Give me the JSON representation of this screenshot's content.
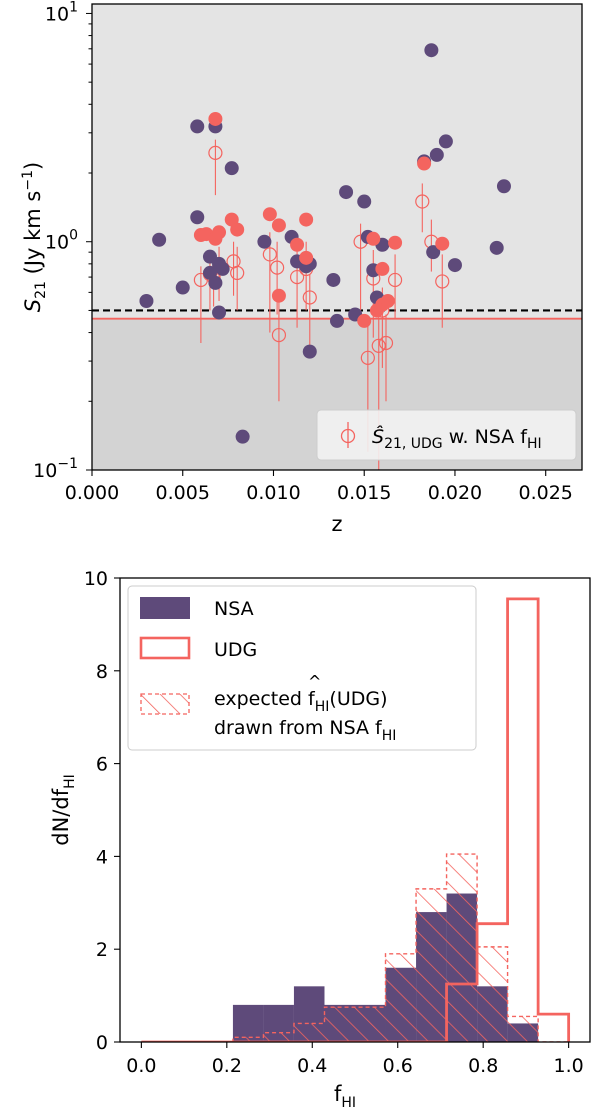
{
  "colors": {
    "nsa": "#5e4a7a",
    "udg": "#f4645f",
    "upper_shade": "#e4e4e4",
    "lower_shade": "#d3d3d3",
    "threshold_black": "#000000"
  },
  "chart_data": [
    {
      "type": "scatter",
      "xlabel": "z",
      "ylabel_main": "S",
      "ylabel_sub": "21",
      "ylabel_units": " (Jy km s",
      "ylabel_exp": "−1",
      "ylabel_close": ")",
      "xlim": [
        0.0,
        0.027
      ],
      "ylim": [
        0.1,
        11
      ],
      "yscale": "log",
      "x_ticks": [
        "0.000",
        "0.005",
        "0.010",
        "0.015",
        "0.020",
        "0.025"
      ],
      "x_tick_values": [
        0.0,
        0.005,
        0.01,
        0.015,
        0.02,
        0.025
      ],
      "y_ticks": [
        {
          "value": 10,
          "base": "10",
          "exp": "1"
        },
        {
          "value": 1,
          "base": "10",
          "exp": "0"
        },
        {
          "value": 0.1,
          "base": "10",
          "exp": "−1"
        }
      ],
      "thresholds": {
        "black_dashed": 0.5,
        "red_solid": 0.46
      },
      "legend": {
        "position": "lower-right",
        "label_hat": "Ŝ",
        "label_sub": "21, UDG",
        "label_rest": " w. NSA f",
        "label_rest_sub": "HI"
      },
      "series": [
        {
          "kind": "nsa-filled",
          "points": [
            [
              0.003,
              0.55
            ],
            [
              0.0037,
              1.02
            ],
            [
              0.005,
              0.63
            ],
            [
              0.0058,
              3.2
            ],
            [
              0.0058,
              1.28
            ],
            [
              0.0065,
              0.86
            ],
            [
              0.0065,
              0.73
            ],
            [
              0.0068,
              3.2
            ],
            [
              0.0068,
              0.66
            ],
            [
              0.007,
              0.8
            ],
            [
              0.007,
              0.49
            ],
            [
              0.0072,
              0.76
            ],
            [
              0.0077,
              2.1
            ],
            [
              0.0083,
              0.14
            ],
            [
              0.0095,
              1.0
            ],
            [
              0.011,
              1.05
            ],
            [
              0.0113,
              0.82
            ],
            [
              0.0118,
              0.78
            ],
            [
              0.012,
              0.8
            ],
            [
              0.012,
              0.33
            ],
            [
              0.0133,
              0.68
            ],
            [
              0.0135,
              0.45
            ],
            [
              0.014,
              1.65
            ],
            [
              0.0145,
              0.48
            ],
            [
              0.015,
              1.5
            ],
            [
              0.0152,
              1.05
            ],
            [
              0.0155,
              0.75
            ],
            [
              0.0157,
              0.57
            ],
            [
              0.016,
              0.97
            ],
            [
              0.0183,
              2.25
            ],
            [
              0.0187,
              6.9
            ],
            [
              0.0188,
              0.9
            ],
            [
              0.019,
              2.4
            ],
            [
              0.0195,
              2.75
            ],
            [
              0.02,
              0.79
            ],
            [
              0.0223,
              0.94
            ],
            [
              0.0227,
              1.75
            ]
          ]
        },
        {
          "kind": "udg-filled",
          "points": [
            [
              0.006,
              1.07
            ],
            [
              0.0063,
              1.08
            ],
            [
              0.0068,
              3.45
            ],
            [
              0.0068,
              1.03
            ],
            [
              0.007,
              1.1
            ],
            [
              0.0077,
              1.25
            ],
            [
              0.008,
              1.13
            ],
            [
              0.0098,
              1.32
            ],
            [
              0.0103,
              0.58
            ],
            [
              0.0103,
              1.18
            ],
            [
              0.0113,
              0.97
            ],
            [
              0.0118,
              1.25
            ],
            [
              0.0118,
              0.85
            ],
            [
              0.015,
              0.45
            ],
            [
              0.0155,
              1.03
            ],
            [
              0.0157,
              0.5
            ],
            [
              0.016,
              0.76
            ],
            [
              0.016,
              0.53
            ],
            [
              0.0163,
              0.55
            ],
            [
              0.0167,
              0.99
            ],
            [
              0.0183,
              2.2
            ],
            [
              0.0193,
              0.98
            ]
          ]
        },
        {
          "kind": "udg-open-errorbar",
          "points": [
            [
              0.006,
              0.68,
              0.36,
              0.78
            ],
            [
              0.0065,
              0.72,
              0.5,
              0.92
            ],
            [
              0.0067,
              0.7,
              0.52,
              0.85
            ],
            [
              0.0068,
              2.45,
              1.6,
              2.8
            ],
            [
              0.007,
              0.77,
              0.55,
              0.95
            ],
            [
              0.0078,
              0.82,
              0.58,
              1.0
            ],
            [
              0.008,
              0.73,
              0.5,
              0.95
            ],
            [
              0.0098,
              0.88,
              0.4,
              1.1
            ],
            [
              0.0102,
              0.77,
              0.48,
              1.0
            ],
            [
              0.0103,
              0.39,
              0.2,
              0.55
            ],
            [
              0.0113,
              0.7,
              0.42,
              0.93
            ],
            [
              0.0118,
              0.76,
              0.5,
              1.0
            ],
            [
              0.012,
              0.57,
              0.34,
              0.72
            ],
            [
              0.0148,
              1.0,
              0.5,
              1.2
            ],
            [
              0.0152,
              0.31,
              0.12,
              0.45
            ],
            [
              0.0155,
              0.69,
              0.38,
              0.92
            ],
            [
              0.0158,
              0.35,
              0.1,
              0.47
            ],
            [
              0.016,
              0.5,
              0.28,
              0.63
            ],
            [
              0.0162,
              0.36,
              0.2,
              0.48
            ],
            [
              0.0167,
              0.68,
              0.46,
              0.88
            ],
            [
              0.0182,
              1.5,
              1.1,
              1.8
            ],
            [
              0.0187,
              1.0,
              0.74,
              1.25
            ],
            [
              0.0193,
              0.67,
              0.42,
              0.88
            ]
          ]
        }
      ]
    },
    {
      "type": "histogram",
      "xlabel_main": "f",
      "xlabel_sub": "HI",
      "ylabel_main": "dN/df",
      "ylabel_sub": "HI",
      "xlim": [
        -0.05,
        1.05
      ],
      "ylim": [
        0,
        10
      ],
      "x_ticks": [
        "0.0",
        "0.2",
        "0.4",
        "0.6",
        "0.8",
        "1.0"
      ],
      "x_tick_values": [
        0.0,
        0.2,
        0.4,
        0.6,
        0.8,
        1.0
      ],
      "y_ticks": [
        "0",
        "2",
        "4",
        "6",
        "8",
        "10"
      ],
      "y_tick_values": [
        0,
        2,
        4,
        6,
        8,
        10
      ],
      "bin_edges": [
        0.0,
        0.0714,
        0.1429,
        0.2143,
        0.2857,
        0.3571,
        0.4286,
        0.5,
        0.5714,
        0.6429,
        0.7143,
        0.7857,
        0.8571,
        0.9286,
        1.0
      ],
      "legend": {
        "position": "upper-left",
        "nsa": "NSA",
        "udg": "UDG",
        "expected_line1_pre": "expected ",
        "expected_line1_f": "f",
        "expected_line1_sub": "HI",
        "expected_line1_post": "(UDG)",
        "expected_line2_pre": "drawn from NSA f",
        "expected_line2_sub": "HI"
      },
      "series": [
        {
          "kind": "nsa",
          "values": [
            0,
            0,
            0,
            0.8,
            0.8,
            1.2,
            0.8,
            0.8,
            1.6,
            2.8,
            3.2,
            1.2,
            0.4,
            0
          ]
        },
        {
          "kind": "udg",
          "values": [
            0,
            0,
            0,
            0,
            0,
            0,
            0,
            0,
            0,
            0,
            1.25,
            2.55,
            9.55,
            0.6
          ]
        },
        {
          "kind": "expected",
          "values": [
            0,
            0,
            0,
            0.1,
            0.2,
            0.4,
            0.75,
            0.75,
            1.9,
            3.3,
            4.05,
            2.05,
            0.55,
            0
          ]
        }
      ]
    }
  ]
}
